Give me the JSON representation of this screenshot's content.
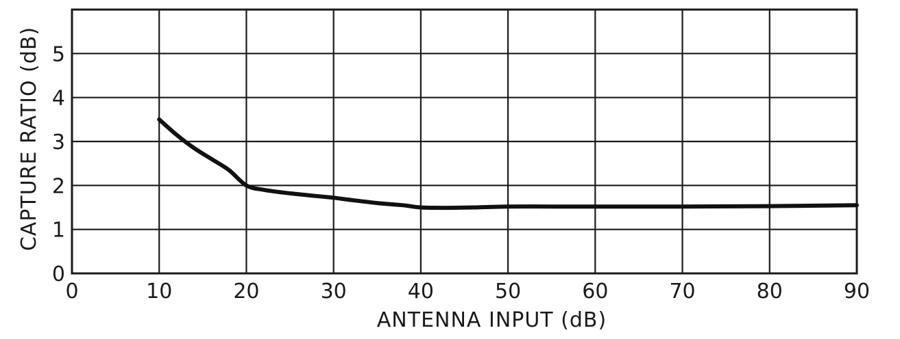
{
  "chart_data": {
    "type": "line",
    "title": "",
    "xlabel": "ANTENNA INPUT (dB)",
    "ylabel": "CAPTURE RATIO (dB)",
    "xlim": [
      0,
      90
    ],
    "ylim": [
      0,
      6
    ],
    "x_ticks": [
      "0",
      "10",
      "20",
      "30",
      "40",
      "50",
      "60",
      "70",
      "80",
      "90"
    ],
    "y_ticks": [
      "0",
      "1",
      "2",
      "3",
      "4",
      "5"
    ],
    "grid": true,
    "legend": "none",
    "series": [
      {
        "x": [
          10,
          12,
          14,
          16,
          18,
          20,
          22,
          25,
          28,
          30,
          32,
          35,
          38,
          40,
          43,
          46,
          50,
          55,
          60,
          70,
          80,
          90
        ],
        "y": [
          3.5,
          3.15,
          2.85,
          2.6,
          2.35,
          2.0,
          1.9,
          1.82,
          1.76,
          1.72,
          1.67,
          1.6,
          1.55,
          1.5,
          1.49,
          1.5,
          1.52,
          1.52,
          1.52,
          1.52,
          1.53,
          1.55
        ]
      }
    ],
    "colors": {
      "line": "#111111",
      "grid": "#1a1a1a"
    }
  }
}
